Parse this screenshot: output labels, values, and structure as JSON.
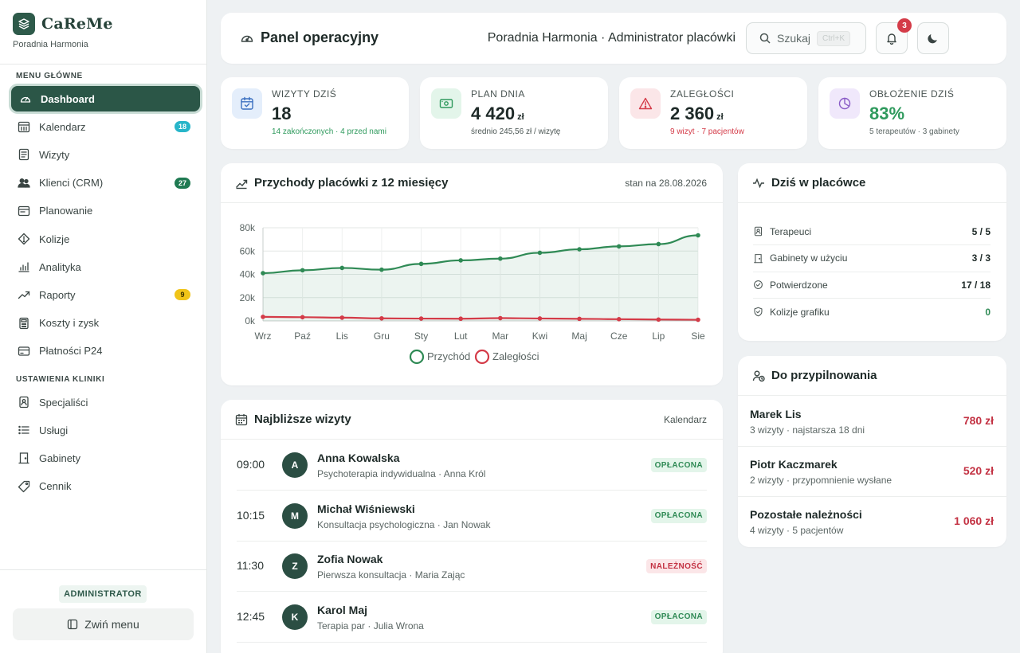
{
  "brand": {
    "name": "CaReMe",
    "subtitle": "Poradnia Harmonia"
  },
  "sidebar": {
    "section_main": "MENU GŁÓWNE",
    "main_items": [
      {
        "label": "Dashboard",
        "icon": "dashboard-gauge-icon",
        "active": true
      },
      {
        "label": "Kalendarz",
        "icon": "calendar-grid-icon",
        "badge": "18",
        "badge_color": "#27b5c9"
      },
      {
        "label": "Wizyty",
        "icon": "document-list-icon"
      },
      {
        "label": "Klienci (CRM)",
        "icon": "users-icon",
        "badge": "27",
        "badge_color": "#1f7a52"
      },
      {
        "label": "Planowanie",
        "icon": "planner-icon"
      },
      {
        "label": "Kolizje",
        "icon": "warning-diamond-icon"
      },
      {
        "label": "Analityka",
        "icon": "bar-chart-icon"
      },
      {
        "label": "Raporty",
        "icon": "trend-line-icon",
        "badge": "9",
        "badge_color": "#f0c419"
      },
      {
        "label": "Koszty i zysk",
        "icon": "calculator-icon"
      },
      {
        "label": "Płatności P24",
        "icon": "credit-card-icon"
      }
    ],
    "section_settings": "USTAWIENIA KLINIKI",
    "settings_items": [
      {
        "label": "Specjaliści",
        "icon": "id-badge-icon"
      },
      {
        "label": "Usługi",
        "icon": "list-icon"
      },
      {
        "label": "Gabinety",
        "icon": "door-icon"
      },
      {
        "label": "Cennik",
        "icon": "price-tag-icon"
      }
    ],
    "role": "ADMINISTRATOR",
    "collapse_label": "Zwiń menu"
  },
  "topbar": {
    "title": "Panel operacyjny",
    "context": "Poradnia Harmonia · Administrator placówki",
    "search_label": "Szukaj",
    "search_shortcut": "Ctrl+K",
    "notifications_count": "3"
  },
  "stats": [
    {
      "label": "WIZYTY DZIŚ",
      "value": "18",
      "unit": "",
      "sub": "14 zakończonych · 4 przed nami",
      "sub_color": "#2f9a5d",
      "value_color": "#1e2a28",
      "icon": "calendar-check-icon",
      "icon_bg": "#e4eefb",
      "icon_color": "#3a6fc0"
    },
    {
      "label": "PLAN DNIA",
      "value": "4 420",
      "unit": "zł",
      "sub": "średnio 245,56 zł / wizytę",
      "sub_color": "#4a5553",
      "value_color": "#1e2a28",
      "icon": "banknote-icon",
      "icon_bg": "#e3f5ea",
      "icon_color": "#2f9a5d"
    },
    {
      "label": "ZALEGŁOŚCI",
      "value": "2 360",
      "unit": "zł",
      "sub": "9 wizyt · 7 pacjentów",
      "sub_color": "#d43b48",
      "value_color": "#1e2a28",
      "icon": "alert-triangle-icon",
      "icon_bg": "#fbe6e8",
      "icon_color": "#d43b48"
    },
    {
      "label": "OBŁOŻENIE DZIŚ",
      "value": "83%",
      "unit": "",
      "sub": "5 terapeutów · 3 gabinety",
      "sub_color": "#5b6664",
      "value_color": "#2f9a5d",
      "icon": "pie-chart-icon",
      "icon_bg": "#f0e8fb",
      "icon_color": "#8a5cc7"
    }
  ],
  "revenue": {
    "title": "Przychody placówki z 12 miesięcy",
    "as_of": "stan na 28.08.2026"
  },
  "chart_data": {
    "type": "area",
    "title": "Przychody placówki z 12 miesięcy",
    "categories": [
      "Wrz",
      "Paź",
      "Lis",
      "Gru",
      "Sty",
      "Lut",
      "Mar",
      "Kwi",
      "Maj",
      "Cze",
      "Lip",
      "Sie"
    ],
    "yticks": [
      "0k",
      "20k",
      "40k",
      "60k",
      "80k"
    ],
    "ylim": [
      0,
      80000
    ],
    "grid": true,
    "legend": "bottom",
    "series": [
      {
        "name": "Przychód",
        "color": "#2f8a55",
        "values": [
          41000,
          43500,
          45500,
          44000,
          49000,
          52000,
          53500,
          58500,
          61500,
          64000,
          66000,
          73500
        ]
      },
      {
        "name": "Zaległości",
        "color": "#d43b48",
        "values": [
          3500,
          3200,
          2800,
          2200,
          2000,
          1900,
          2400,
          2100,
          1800,
          1500,
          1200,
          1000
        ]
      }
    ]
  },
  "visits": {
    "title": "Najbliższe wizyty",
    "link": "Kalendarz",
    "rows": [
      {
        "time": "09:00",
        "initial": "A",
        "name": "Anna Kowalska",
        "desc": "Psychoterapia indywidualna · Anna Król",
        "status": "OPŁACONA",
        "status_bg": "#e3f5ea",
        "status_color": "#2f8a55"
      },
      {
        "time": "10:15",
        "initial": "M",
        "name": "Michał Wiśniewski",
        "desc": "Konsultacja psychologiczna · Jan Nowak",
        "status": "OPŁACONA",
        "status_bg": "#e3f5ea",
        "status_color": "#2f8a55"
      },
      {
        "time": "11:30",
        "initial": "Z",
        "name": "Zofia Nowak",
        "desc": "Pierwsza konsultacja · Maria Zając",
        "status": "NALEŻNOŚĆ",
        "status_bg": "#fbe6e8",
        "status_color": "#c33243"
      },
      {
        "time": "12:45",
        "initial": "K",
        "name": "Karol Maj",
        "desc": "Terapia par · Julia Wrona",
        "status": "OPŁACONA",
        "status_bg": "#e3f5ea",
        "status_color": "#2f8a55"
      }
    ]
  },
  "today": {
    "title": "Dziś w placówce",
    "rows": [
      {
        "label": "Terapeuci",
        "value": "5 / 5",
        "icon": "id-badge-icon",
        "value_color": "#1e2a28"
      },
      {
        "label": "Gabinety w użyciu",
        "value": "3 / 3",
        "icon": "door-icon",
        "value_color": "#1e2a28"
      },
      {
        "label": "Potwierdzone",
        "value": "17 / 18",
        "icon": "check-circle-icon",
        "value_color": "#1e2a28"
      },
      {
        "label": "Kolizje grafiku",
        "value": "0",
        "icon": "shield-icon",
        "value_color": "#2f8a55"
      }
    ]
  },
  "watch": {
    "title": "Do przypilnowania",
    "rows": [
      {
        "name": "Marek Lis",
        "desc": "3 wizyty · najstarsza 18 dni",
        "amount": "780 zł"
      },
      {
        "name": "Piotr Kaczmarek",
        "desc": "2 wizyty · przypomnienie wysłane",
        "amount": "520 zł"
      },
      {
        "name": "Pozostałe należności",
        "desc": "4 wizyty · 5 pacjentów",
        "amount": "1 060 zł"
      }
    ]
  }
}
